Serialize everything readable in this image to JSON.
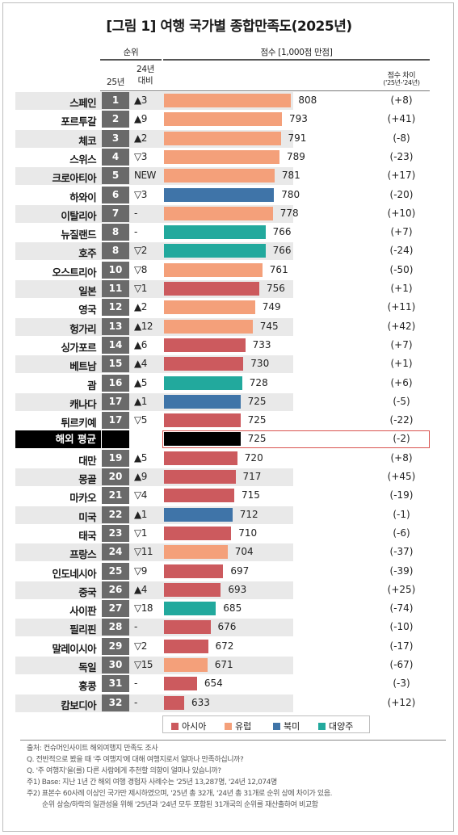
{
  "title": "[그림 1] 여행 국가별 종합만족도(2025년)",
  "headers": {
    "rank": "순위",
    "rank_2025": "25년",
    "rank_vs_2024": "24년\n대비",
    "score": "점수 [1,000점 만점]",
    "diff": "점수 차이",
    "diff_sub": "('25년-'24년)"
  },
  "colors": {
    "아시아": "#cc5a5e",
    "유럽": "#f4a07a",
    "북미": "#3f74a8",
    "대양주": "#22a99d",
    "average": "#000000"
  },
  "chart_data": {
    "type": "bar",
    "orientation": "horizontal",
    "title": "[그림 1] 여행 국가별 종합만족도(2025년)",
    "ylabel": "점수 [1,000점 만점]",
    "legend": [
      "아시아",
      "유럽",
      "북미",
      "대양주"
    ],
    "legend_position": "bottom",
    "rows": [
      {
        "name": "스페인",
        "rank": "1",
        "change": "▲3",
        "score": 808,
        "diff": "(+8)",
        "region": "유럽"
      },
      {
        "name": "포르투갈",
        "rank": "2",
        "change": "▲9",
        "score": 793,
        "diff": "(+41)",
        "region": "유럽"
      },
      {
        "name": "체코",
        "rank": "3",
        "change": "▲2",
        "score": 791,
        "diff": "(-8)",
        "region": "유럽"
      },
      {
        "name": "스위스",
        "rank": "4",
        "change": "▽3",
        "score": 789,
        "diff": "(-23)",
        "region": "유럽"
      },
      {
        "name": "크로아티아",
        "rank": "5",
        "change": "NEW",
        "score": 781,
        "diff": "(+17)",
        "region": "유럽"
      },
      {
        "name": "하와이",
        "rank": "6",
        "change": "▽3",
        "score": 780,
        "diff": "(-20)",
        "region": "북미"
      },
      {
        "name": "이탈리아",
        "rank": "7",
        "change": "-",
        "score": 778,
        "diff": "(+10)",
        "region": "유럽"
      },
      {
        "name": "뉴질랜드",
        "rank": "8",
        "change": "-",
        "score": 766,
        "diff": "(+7)",
        "region": "대양주"
      },
      {
        "name": "호주",
        "rank": "8",
        "change": "▽2",
        "score": 766,
        "diff": "(-24)",
        "region": "대양주"
      },
      {
        "name": "오스트리아",
        "rank": "10",
        "change": "▽8",
        "score": 761,
        "diff": "(-50)",
        "region": "유럽"
      },
      {
        "name": "일본",
        "rank": "11",
        "change": "▽1",
        "score": 756,
        "diff": "(+1)",
        "region": "아시아"
      },
      {
        "name": "영국",
        "rank": "12",
        "change": "▲2",
        "score": 749,
        "diff": "(+11)",
        "region": "유럽"
      },
      {
        "name": "헝가리",
        "rank": "13",
        "change": "▲12",
        "score": 745,
        "diff": "(+42)",
        "region": "유럽"
      },
      {
        "name": "싱가포르",
        "rank": "14",
        "change": "▲6",
        "score": 733,
        "diff": "(+7)",
        "region": "아시아"
      },
      {
        "name": "베트남",
        "rank": "15",
        "change": "▲4",
        "score": 730,
        "diff": "(+1)",
        "region": "아시아"
      },
      {
        "name": "괌",
        "rank": "16",
        "change": "▲5",
        "score": 728,
        "diff": "(+6)",
        "region": "대양주"
      },
      {
        "name": "캐나다",
        "rank": "17",
        "change": "▲1",
        "score": 725,
        "diff": "(-5)",
        "region": "북미"
      },
      {
        "name": "튀르키예",
        "rank": "17",
        "change": "▽5",
        "score": 725,
        "diff": "(-22)",
        "region": "아시아"
      },
      {
        "name": "해외 평균",
        "rank": "",
        "change": "",
        "score": 725,
        "diff": "(-2)",
        "region": "average"
      },
      {
        "name": "대만",
        "rank": "19",
        "change": "▲5",
        "score": 720,
        "diff": "(+8)",
        "region": "아시아"
      },
      {
        "name": "몽골",
        "rank": "20",
        "change": "▲9",
        "score": 717,
        "diff": "(+45)",
        "region": "아시아"
      },
      {
        "name": "마카오",
        "rank": "21",
        "change": "▽4",
        "score": 715,
        "diff": "(-19)",
        "region": "아시아"
      },
      {
        "name": "미국",
        "rank": "22",
        "change": "▲1",
        "score": 712,
        "diff": "(-1)",
        "region": "북미"
      },
      {
        "name": "태국",
        "rank": "23",
        "change": "▽1",
        "score": 710,
        "diff": "(-6)",
        "region": "아시아"
      },
      {
        "name": "프랑스",
        "rank": "24",
        "change": "▽11",
        "score": 704,
        "diff": "(-37)",
        "region": "유럽"
      },
      {
        "name": "인도네시아",
        "rank": "25",
        "change": "▽9",
        "score": 697,
        "diff": "(-39)",
        "region": "아시아"
      },
      {
        "name": "중국",
        "rank": "26",
        "change": "▲4",
        "score": 693,
        "diff": "(+25)",
        "region": "아시아"
      },
      {
        "name": "사이판",
        "rank": "27",
        "change": "▽18",
        "score": 685,
        "diff": "(-74)",
        "region": "대양주"
      },
      {
        "name": "필리핀",
        "rank": "28",
        "change": "-",
        "score": 676,
        "diff": "(-10)",
        "region": "아시아"
      },
      {
        "name": "말레이시아",
        "rank": "29",
        "change": "▽2",
        "score": 672,
        "diff": "(-17)",
        "region": "아시아"
      },
      {
        "name": "독일",
        "rank": "30",
        "change": "▽15",
        "score": 671,
        "diff": "(-67)",
        "region": "유럽"
      },
      {
        "name": "홍콩",
        "rank": "31",
        "change": "-",
        "score": 654,
        "diff": "(-3)",
        "region": "아시아"
      },
      {
        "name": "캄보디아",
        "rank": "32",
        "change": "-",
        "score": 633,
        "diff": "(+12)",
        "region": "아시아"
      }
    ]
  },
  "footnotes": [
    "출처: 컨슈머인사이트 해외여행지 만족도 조사",
    "Q. 전반적으로 봤을 때 '주 여행지'에 대해 여행지로서 얼마나 만족하십니까?",
    "Q. '주 여행지'을(를) 다른 사람에게 추천할 의향이 얼마나 있습니까?",
    "주1) Base: 지난 1년 간 해외 여행 경험자 사례수는 '25년 13,287명, '24년 12,074명",
    "주2) 표본수 60사례 이상인 국가만 제시하였으며, '25년 총 32개, '24년 총 31개로 순위 상에 차이가 있음.",
    "순위 상승/하락의 일관성을 위해 '25년과 '24년 모두 포함된 31개국의 순위를 재산출하여 비교함"
  ]
}
